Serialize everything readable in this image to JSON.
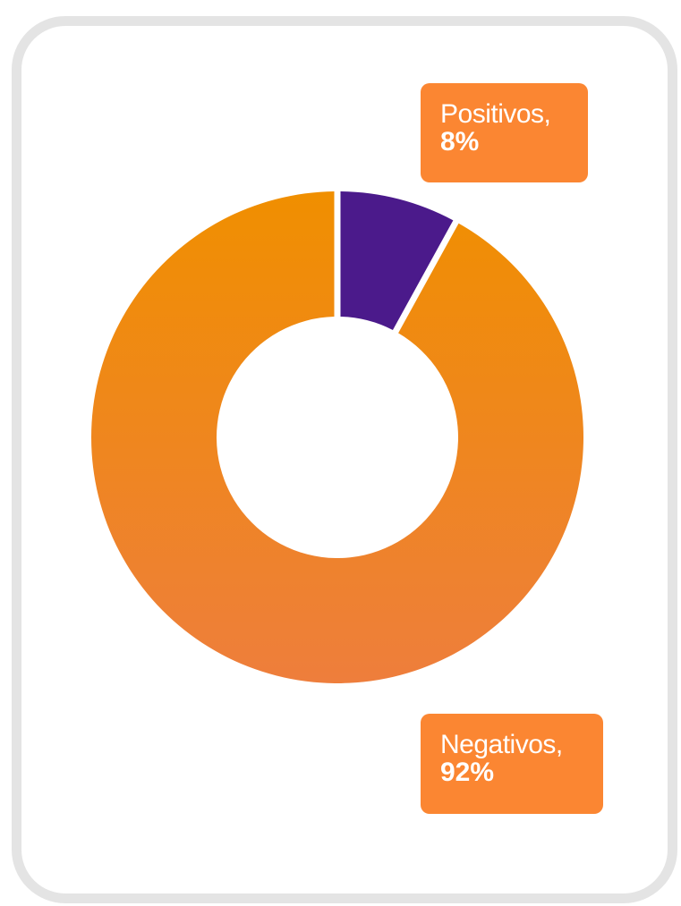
{
  "colors": {
    "positive": "#4b1a8b",
    "negative_top": "#f08f00",
    "negative_bottom": "#ee7e3c",
    "callout": "#fb8632",
    "card_border": "#e4e4e4"
  },
  "chart_data": {
    "type": "pie",
    "variant": "donut",
    "categories": [
      "Positivos",
      "Negativos"
    ],
    "values": [
      8,
      92
    ],
    "unit": "%",
    "labels": [
      {
        "category": "Positivos,",
        "value": "8%"
      },
      {
        "category": "Negativos,",
        "value": "92%"
      }
    ]
  }
}
